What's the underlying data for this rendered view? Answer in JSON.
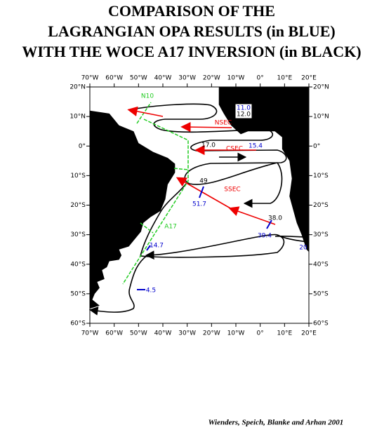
{
  "title": [
    "COMPARISON OF THE",
    "LAGRANGIAN OPA RESULTS (in BLUE)",
    "WITH THE WOCE A17 INVERSION (in BLACK)"
  ],
  "lon_ticks": [
    "70°W",
    "60°W",
    "50°W",
    "40°W",
    "30°W",
    "20°W",
    "10°W",
    "0°",
    "10°E",
    "20°E"
  ],
  "lat_ticks": [
    "20°N",
    "10°N",
    "0°",
    "10°S",
    "20°S",
    "30°S",
    "40°S",
    "50°S",
    "60°S"
  ],
  "labels": [
    "N10",
    "11.0",
    "12.0",
    "NSEC",
    "17.0",
    "CSEC",
    "15.4",
    "49",
    "SSEC",
    "51.7",
    "38.0",
    "39.4",
    "A17",
    "14.7",
    "20",
    "4.5"
  ],
  "credit": "Wienders, Speich, Blanke and Arhan 2001"
}
